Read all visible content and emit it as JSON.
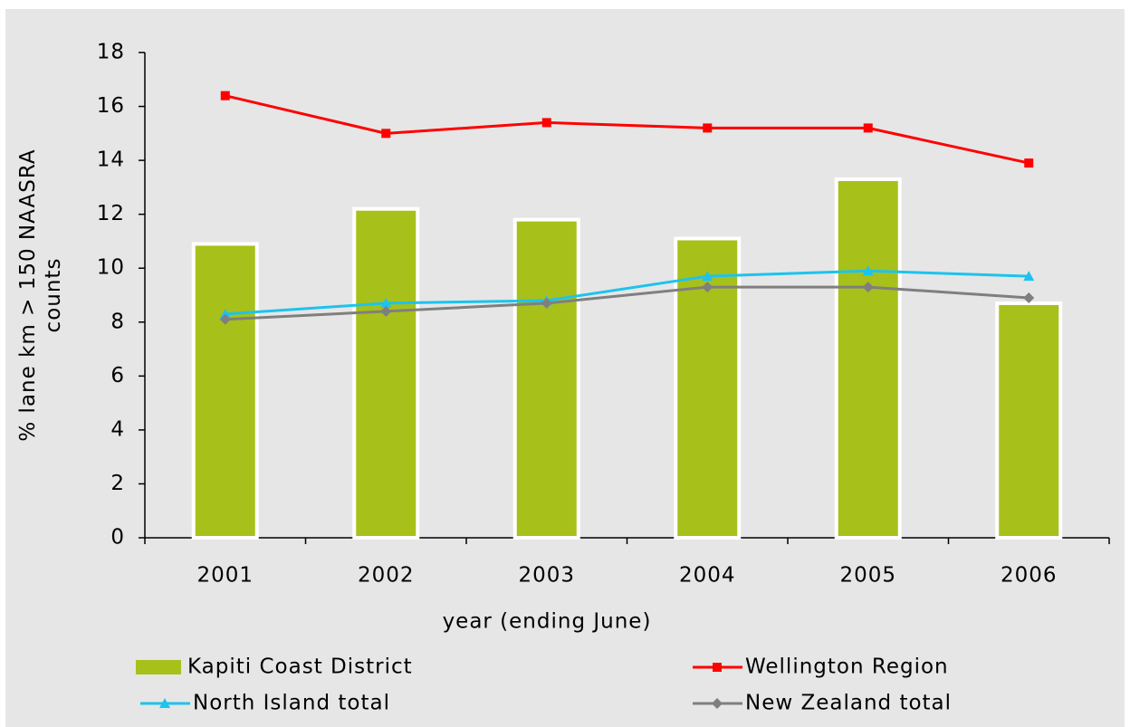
{
  "chart_data": {
    "type": "bar-line",
    "x_label": "year (ending June)",
    "y_label": "% lane km > 150 NAASRA counts",
    "categories": [
      "2001",
      "2002",
      "2003",
      "2004",
      "2005",
      "2006"
    ],
    "series": [
      {
        "name": "Kapiti Coast District",
        "type": "bar",
        "color": "#a8c01a",
        "values": [
          10.9,
          12.2,
          11.8,
          11.1,
          13.3,
          8.7
        ]
      },
      {
        "name": "Wellington Region",
        "type": "line",
        "marker": "square",
        "color": "#ff0000",
        "values": [
          16.4,
          15.0,
          15.4,
          15.2,
          15.2,
          13.9
        ]
      },
      {
        "name": "North Island total",
        "type": "line",
        "marker": "triangle",
        "color": "#1cc3ee",
        "values": [
          8.3,
          8.7,
          8.8,
          9.7,
          9.9,
          9.7
        ]
      },
      {
        "name": "New Zealand total",
        "type": "line",
        "marker": "diamond",
        "color": "#7f7f7f",
        "values": [
          8.1,
          8.4,
          8.7,
          9.3,
          9.3,
          8.9
        ]
      }
    ],
    "ylim": [
      0,
      18
    ],
    "yticks": [
      0,
      2,
      4,
      6,
      8,
      10,
      12,
      14,
      16,
      18
    ]
  }
}
